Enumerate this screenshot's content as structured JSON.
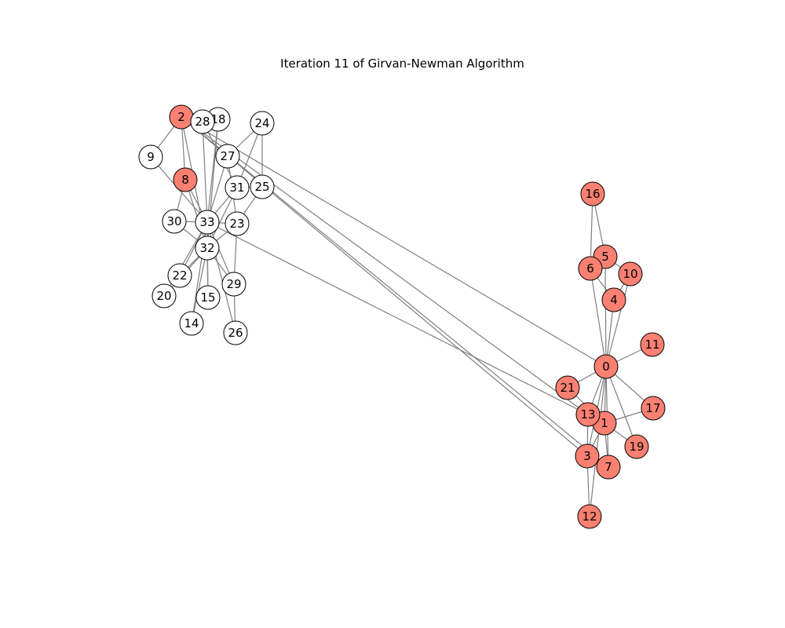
{
  "title": "Iteration 11 of Girvan-Newman Algorithm",
  "colors": {
    "community_a": "#FA8072",
    "community_b": "#FFFFFF",
    "edge": "#808080",
    "node_border": "#000000"
  },
  "nodes": [
    {
      "id": "0",
      "community": "a"
    },
    {
      "id": "1",
      "community": "a"
    },
    {
      "id": "2",
      "community": "a"
    },
    {
      "id": "3",
      "community": "a"
    },
    {
      "id": "4",
      "community": "a"
    },
    {
      "id": "5",
      "community": "a"
    },
    {
      "id": "6",
      "community": "a"
    },
    {
      "id": "7",
      "community": "a"
    },
    {
      "id": "8",
      "community": "a"
    },
    {
      "id": "9",
      "community": "b"
    },
    {
      "id": "10",
      "community": "a"
    },
    {
      "id": "11",
      "community": "a"
    },
    {
      "id": "12",
      "community": "a"
    },
    {
      "id": "13",
      "community": "a"
    },
    {
      "id": "14",
      "community": "b"
    },
    {
      "id": "15",
      "community": "b"
    },
    {
      "id": "16",
      "community": "a"
    },
    {
      "id": "17",
      "community": "a"
    },
    {
      "id": "18",
      "community": "b"
    },
    {
      "id": "19",
      "community": "a"
    },
    {
      "id": "20",
      "community": "b"
    },
    {
      "id": "21",
      "community": "a"
    },
    {
      "id": "22",
      "community": "b"
    },
    {
      "id": "23",
      "community": "b"
    },
    {
      "id": "24",
      "community": "b"
    },
    {
      "id": "25",
      "community": "b"
    },
    {
      "id": "26",
      "community": "b"
    },
    {
      "id": "27",
      "community": "b"
    },
    {
      "id": "28",
      "community": "b"
    },
    {
      "id": "29",
      "community": "b"
    },
    {
      "id": "30",
      "community": "b"
    },
    {
      "id": "31",
      "community": "b"
    },
    {
      "id": "32",
      "community": "b"
    },
    {
      "id": "33",
      "community": "b"
    }
  ],
  "edges": [
    [
      "0",
      "4"
    ],
    [
      "0",
      "5"
    ],
    [
      "0",
      "6"
    ],
    [
      "0",
      "10"
    ],
    [
      "0",
      "11"
    ],
    [
      "0",
      "1"
    ],
    [
      "0",
      "2"
    ],
    [
      "0",
      "3"
    ],
    [
      "0",
      "7"
    ],
    [
      "0",
      "12"
    ],
    [
      "0",
      "13"
    ],
    [
      "0",
      "17"
    ],
    [
      "0",
      "19"
    ],
    [
      "0",
      "21"
    ],
    [
      "1",
      "3"
    ],
    [
      "1",
      "7"
    ],
    [
      "1",
      "13"
    ],
    [
      "1",
      "17"
    ],
    [
      "1",
      "19"
    ],
    [
      "1",
      "21"
    ],
    [
      "2",
      "3"
    ],
    [
      "2",
      "7"
    ],
    [
      "2",
      "8"
    ],
    [
      "2",
      "9"
    ],
    [
      "2",
      "13"
    ],
    [
      "2",
      "27"
    ],
    [
      "2",
      "28"
    ],
    [
      "2",
      "32"
    ],
    [
      "3",
      "7"
    ],
    [
      "3",
      "12"
    ],
    [
      "3",
      "13"
    ],
    [
      "4",
      "6"
    ],
    [
      "4",
      "10"
    ],
    [
      "5",
      "6"
    ],
    [
      "5",
      "10"
    ],
    [
      "5",
      "16"
    ],
    [
      "6",
      "16"
    ],
    [
      "8",
      "30"
    ],
    [
      "8",
      "32"
    ],
    [
      "8",
      "33"
    ],
    [
      "9",
      "33"
    ],
    [
      "13",
      "33"
    ],
    [
      "14",
      "32"
    ],
    [
      "14",
      "33"
    ],
    [
      "15",
      "32"
    ],
    [
      "15",
      "33"
    ],
    [
      "18",
      "32"
    ],
    [
      "18",
      "33"
    ],
    [
      "20",
      "32"
    ],
    [
      "20",
      "33"
    ],
    [
      "22",
      "32"
    ],
    [
      "22",
      "33"
    ],
    [
      "23",
      "25"
    ],
    [
      "23",
      "27"
    ],
    [
      "23",
      "29"
    ],
    [
      "23",
      "32"
    ],
    [
      "23",
      "33"
    ],
    [
      "24",
      "25"
    ],
    [
      "24",
      "27"
    ],
    [
      "24",
      "31"
    ],
    [
      "25",
      "31"
    ],
    [
      "26",
      "29"
    ],
    [
      "26",
      "33"
    ],
    [
      "27",
      "33"
    ],
    [
      "28",
      "31"
    ],
    [
      "28",
      "33"
    ],
    [
      "29",
      "32"
    ],
    [
      "29",
      "33"
    ],
    [
      "30",
      "32"
    ],
    [
      "30",
      "33"
    ],
    [
      "31",
      "32"
    ],
    [
      "31",
      "33"
    ],
    [
      "32",
      "33"
    ]
  ]
}
